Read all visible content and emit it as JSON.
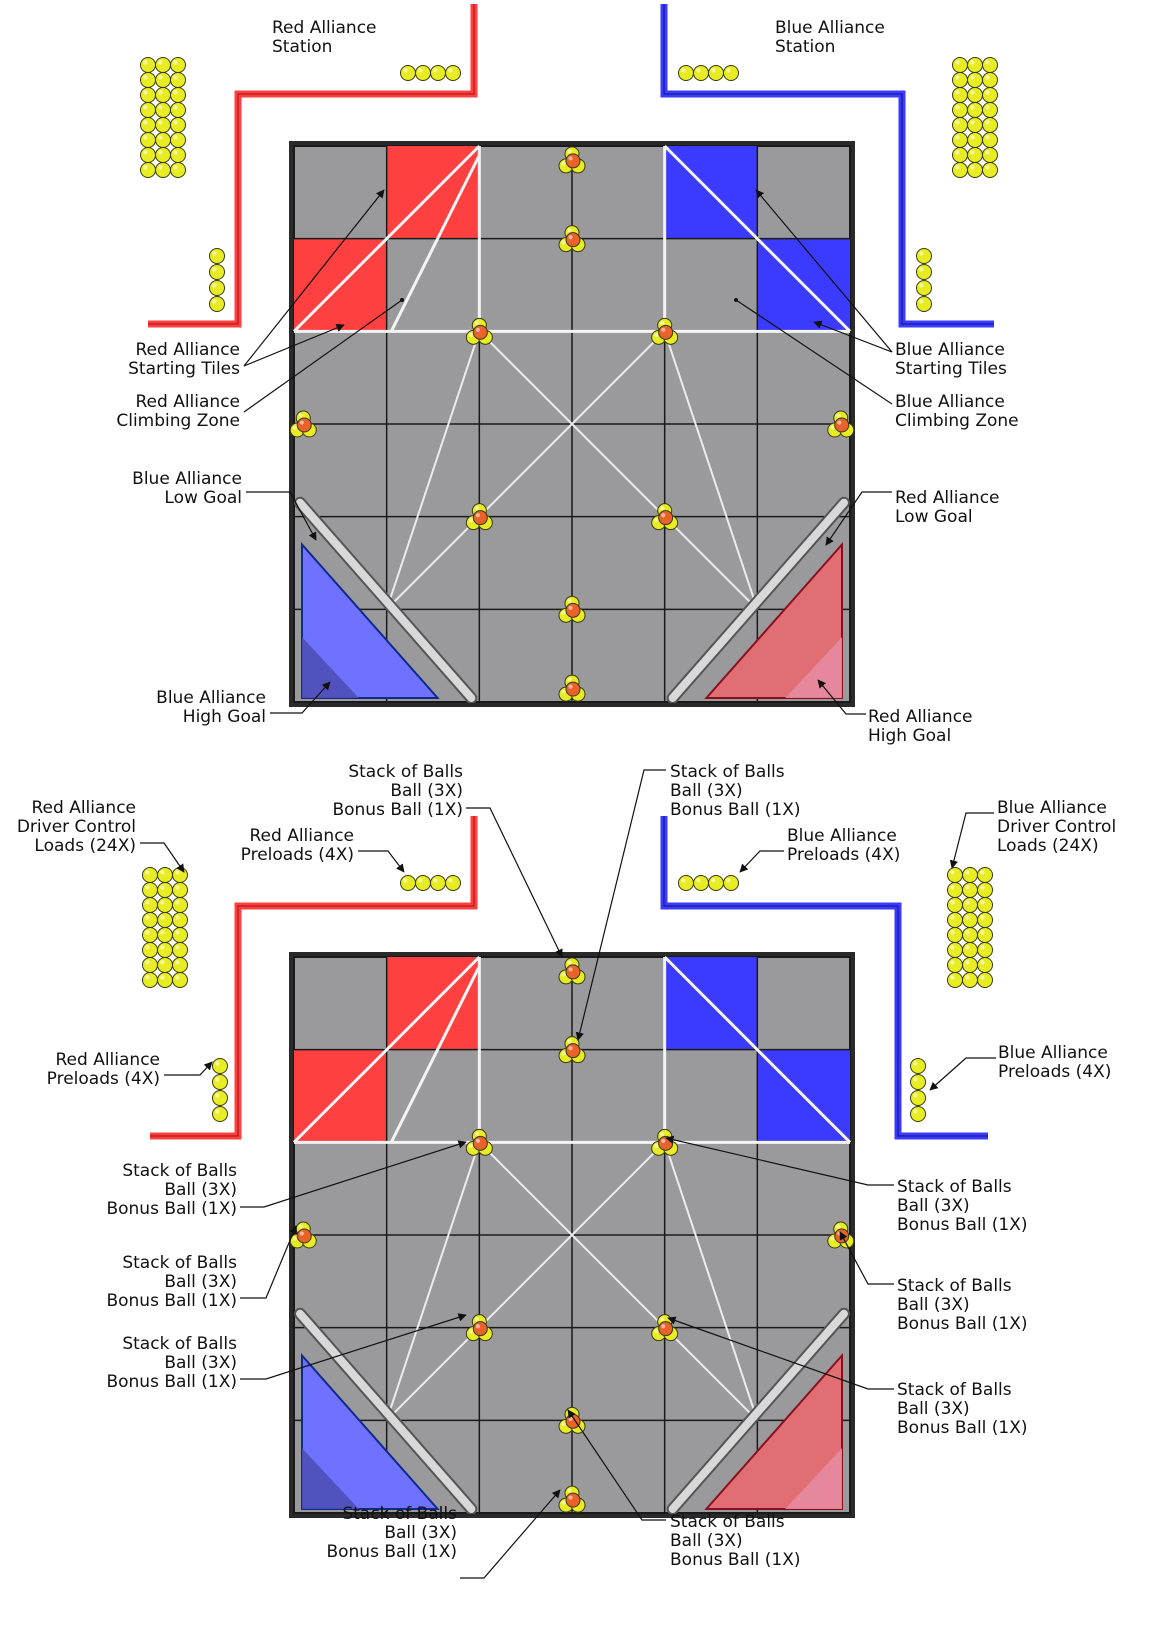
{
  "colors": {
    "red": "#ff4040",
    "blue": "#3b3bff",
    "tile": "#9a9a9c",
    "grid": "#1a1a1a",
    "ball": "#e8ec22",
    "bonus": "#e8622a",
    "lowgoal": "#d8d8d8",
    "highgoal_blue": "#6f72ff",
    "highgoal_red": "#e06e72"
  },
  "diagram1": {
    "labels": {
      "red_station": [
        "Red Alliance",
        "Station"
      ],
      "blue_station": [
        "Blue Alliance",
        "Station"
      ],
      "red_starting": [
        "Red Alliance",
        "Starting Tiles"
      ],
      "red_climbing": [
        "Red Alliance",
        "Climbing Zone"
      ],
      "blue_low": [
        "Blue Alliance",
        "Low Goal"
      ],
      "blue_high": [
        "Blue Alliance",
        "High Goal"
      ],
      "blue_starting": [
        "Blue Alliance",
        "Starting Tiles"
      ],
      "blue_climbing": [
        "Blue Alliance",
        "Climbing Zone"
      ],
      "red_low": [
        "Red Alliance",
        "Low Goal"
      ],
      "red_high": [
        "Red Alliance",
        "High Goal"
      ]
    }
  },
  "diagram2": {
    "labels": {
      "stack": [
        "Stack of Balls",
        "Ball (3X)",
        "Bonus Ball (1X)"
      ],
      "red_dc": [
        "Red Alliance",
        "Driver Control",
        "Loads (24X)"
      ],
      "blue_dc": [
        "Blue Alliance",
        "Driver Control",
        "Loads (24X)"
      ],
      "red_preloads": [
        "Red Alliance",
        "Preloads (4X)"
      ],
      "blue_preloads": [
        "Blue Alliance",
        "Preloads (4X)"
      ]
    }
  }
}
